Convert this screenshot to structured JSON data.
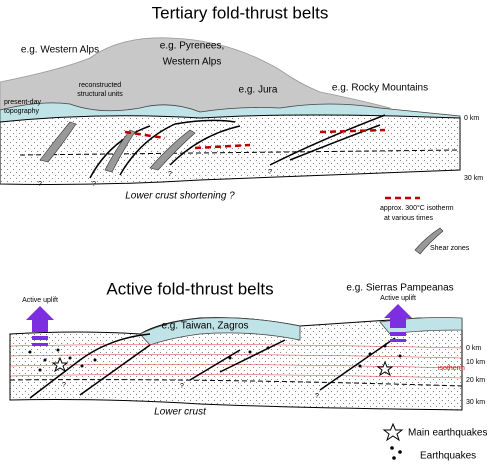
{
  "top_panel": {
    "title": "Tertiary fold-thrust belts",
    "examples": [
      "e.g. Western Alps",
      "e.g. Pyrenees,",
      "Western Alps",
      "e.g. Jura",
      "e.g. Rocky Mountains"
    ],
    "notes": [
      "reconstructed",
      "structural units",
      "present-day",
      "topography"
    ],
    "depth_labels": [
      "0 km",
      "30 km"
    ],
    "question_marks": [
      "?",
      "?",
      "?",
      "?"
    ],
    "crust_label": "Lower crust shortening ?",
    "legend": {
      "isotherm": [
        "approx. 300°C isotherm",
        "at various times"
      ],
      "shear": "Shear zones"
    }
  },
  "bottom_panel": {
    "title": "Active fold-thrust belts",
    "uplift": [
      "Active uplift",
      "Active uplift"
    ],
    "examples": [
      "e.g. Taiwan, Zagros",
      "e.g. Sierras Pampeanas"
    ],
    "depth_labels": [
      "0 km",
      "10 km",
      "20 km",
      "30 km"
    ],
    "isotherm_label": "isotherm",
    "question_marks": [
      "?",
      "?",
      "?"
    ],
    "crust_label": "Lower crust",
    "legend": {
      "main": "Main earthquakes",
      "quakes": "Earthquakes"
    }
  }
}
